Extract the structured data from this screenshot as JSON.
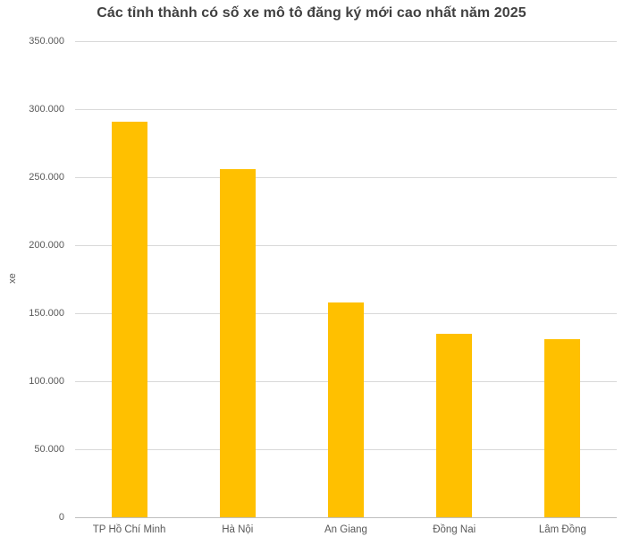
{
  "title": "Các tỉnh thành có số xe mô tô đăng ký mới cao nhất năm 2025",
  "chart_data": {
    "type": "bar",
    "title": "Các tỉnh thành có số xe mô tô đăng ký mới cao nhất năm 2025",
    "categories": [
      "TP Hồ Chí Minh",
      "Hà Nội",
      "An Giang",
      "Đồng Nai",
      "Lâm Đồng"
    ],
    "values": [
      291000,
      256000,
      158000,
      135000,
      131000
    ],
    "xlabel": "",
    "ylabel": "xe",
    "ylim": [
      0,
      350000
    ],
    "ytick_values": [
      0,
      50000,
      100000,
      150000,
      200000,
      250000,
      300000,
      350000
    ],
    "ytick_labels": [
      "0",
      "50.000",
      "100.000",
      "150.000",
      "200.000",
      "250.000",
      "300.000",
      "350.000"
    ],
    "grid": true,
    "legend": false,
    "bar_color": "#FFC000"
  },
  "colors": {
    "bar": "#FFC000",
    "gridline": "#D9D9D9",
    "axis_line": "#BFBFBF",
    "title_text": "#404040",
    "tick_text": "#595959",
    "background": "#FFFFFF"
  }
}
